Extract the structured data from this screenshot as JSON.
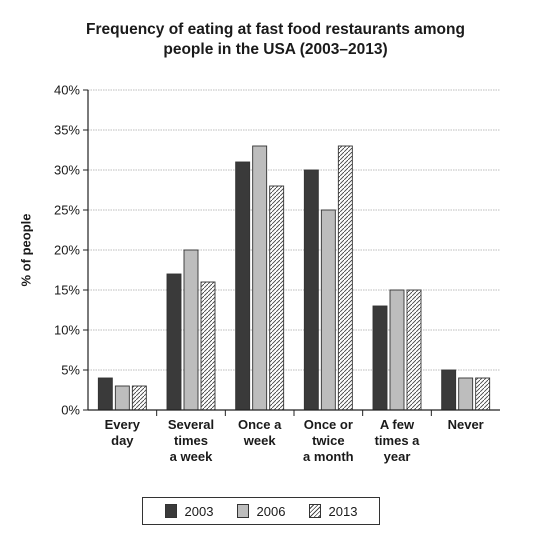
{
  "chart_data": {
    "type": "bar",
    "title_line1": "Frequency of eating at fast food restaurants among",
    "title_line2": "people in the USA (2003–2013)",
    "ylabel": "% of people",
    "ylim": [
      0,
      40
    ],
    "yticks": [
      "0%",
      "5%",
      "10%",
      "15%",
      "20%",
      "25%",
      "30%",
      "35%",
      "40%"
    ],
    "grid": true,
    "legend_position": "bottom",
    "categories": [
      [
        "Every",
        "day"
      ],
      [
        "Several",
        "times",
        "a week"
      ],
      [
        "Once a",
        "week"
      ],
      [
        "Once or",
        "twice",
        "a month"
      ],
      [
        "A few",
        "times a",
        "year"
      ],
      [
        "Never"
      ]
    ],
    "series": [
      {
        "name": "2003",
        "values": [
          4,
          17,
          31,
          30,
          13,
          5
        ],
        "color": "#3a3a3a",
        "pattern": "solid"
      },
      {
        "name": "2006",
        "values": [
          3,
          20,
          33,
          25,
          15,
          4
        ],
        "color": "#bdbdbd",
        "pattern": "solid"
      },
      {
        "name": "2013",
        "values": [
          3,
          16,
          28,
          33,
          15,
          4
        ],
        "color": "#ffffff",
        "pattern": "hatched"
      }
    ]
  }
}
